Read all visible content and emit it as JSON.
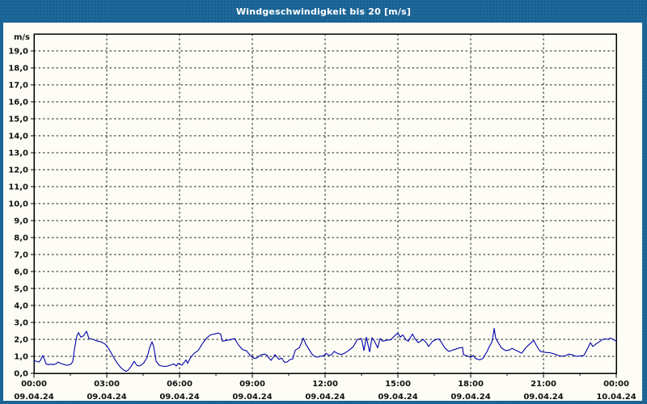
{
  "window": {
    "title": "Windgeschwindigkeit bis 20 [m/s]"
  },
  "colors": {
    "frame": "#1d689a",
    "titlebar": "#1d689a",
    "title_text": "#ffffff",
    "panel_bg": "#fdfdf6",
    "axis": "#000000",
    "grid": "#1a1a1a",
    "tick_label": "#111111",
    "line": "#0000aa"
  },
  "chart_data": {
    "type": "line",
    "title": "Windgeschwindigkeit bis 20 [m/s]",
    "y_unit": "m/s",
    "ylim": [
      0,
      20
    ],
    "y_tick_step": 1.0,
    "y_tick_labels": [
      "0,0",
      "1,0",
      "2,0",
      "3,0",
      "4,0",
      "5,0",
      "6,0",
      "7,0",
      "8,0",
      "9,0",
      "10,0",
      "11,0",
      "12,0",
      "13,0",
      "14,0",
      "15,0",
      "16,0",
      "17,0",
      "18,0",
      "19,0"
    ],
    "x_hours_span": 24,
    "x_major_step_hours": 3,
    "x_minor_step_hours": 1.5,
    "x_major_ticks": [
      {
        "time": "00:00",
        "date": "09.04.24"
      },
      {
        "time": "03:00",
        "date": "09.04.24"
      },
      {
        "time": "06:00",
        "date": "09.04.24"
      },
      {
        "time": "09:00",
        "date": "09.04.24"
      },
      {
        "time": "12:00",
        "date": "09.04.24"
      },
      {
        "time": "15:00",
        "date": "09.04.24"
      },
      {
        "time": "18:00",
        "date": "09.04.24"
      },
      {
        "time": "21:00",
        "date": "09.04.24"
      },
      {
        "time": "00:00",
        "date": "10.04.24"
      }
    ],
    "grid": "dashed",
    "legend": "none",
    "series": [
      {
        "name": "Windgeschwindigkeit",
        "unit": "m/s",
        "color": "#0000aa",
        "points_t_min_value": [
          [
            0,
            0.75
          ],
          [
            6,
            0.71
          ],
          [
            12,
            0.66
          ],
          [
            16,
            0.76
          ],
          [
            22,
            1.05
          ],
          [
            26,
            0.82
          ],
          [
            30,
            0.55
          ],
          [
            36,
            0.51
          ],
          [
            42,
            0.54
          ],
          [
            48,
            0.51
          ],
          [
            54,
            0.55
          ],
          [
            60,
            0.66
          ],
          [
            64,
            0.6
          ],
          [
            70,
            0.55
          ],
          [
            76,
            0.51
          ],
          [
            82,
            0.47
          ],
          [
            88,
            0.51
          ],
          [
            92,
            0.55
          ],
          [
            96,
            0.7
          ],
          [
            100,
            1.4
          ],
          [
            106,
            2.2
          ],
          [
            110,
            2.4
          ],
          [
            116,
            2.13
          ],
          [
            122,
            2.2
          ],
          [
            130,
            2.48
          ],
          [
            136,
            2.05
          ],
          [
            146,
            2.0
          ],
          [
            156,
            1.9
          ],
          [
            166,
            1.85
          ],
          [
            176,
            1.72
          ],
          [
            186,
            1.42
          ],
          [
            192,
            1.15
          ],
          [
            198,
            0.9
          ],
          [
            206,
            0.6
          ],
          [
            214,
            0.35
          ],
          [
            222,
            0.19
          ],
          [
            228,
            0.11
          ],
          [
            234,
            0.21
          ],
          [
            240,
            0.4
          ],
          [
            248,
            0.71
          ],
          [
            254,
            0.47
          ],
          [
            260,
            0.43
          ],
          [
            266,
            0.5
          ],
          [
            272,
            0.63
          ],
          [
            280,
            0.95
          ],
          [
            286,
            1.5
          ],
          [
            292,
            1.85
          ],
          [
            296,
            1.58
          ],
          [
            300,
            1.03
          ],
          [
            302,
            0.71
          ],
          [
            310,
            0.47
          ],
          [
            316,
            0.43
          ],
          [
            326,
            0.4
          ],
          [
            336,
            0.47
          ],
          [
            346,
            0.55
          ],
          [
            352,
            0.43
          ],
          [
            356,
            0.58
          ],
          [
            366,
            0.48
          ],
          [
            376,
            0.79
          ],
          [
            380,
            0.58
          ],
          [
            386,
            0.87
          ],
          [
            396,
            1.18
          ],
          [
            406,
            1.34
          ],
          [
            416,
            1.73
          ],
          [
            426,
            2.05
          ],
          [
            436,
            2.26
          ],
          [
            446,
            2.32
          ],
          [
            456,
            2.37
          ],
          [
            462,
            2.29
          ],
          [
            466,
            1.89
          ],
          [
            476,
            1.94
          ],
          [
            486,
            1.97
          ],
          [
            496,
            2.05
          ],
          [
            506,
            1.66
          ],
          [
            516,
            1.4
          ],
          [
            526,
            1.32
          ],
          [
            534,
            1.07
          ],
          [
            540,
            0.95
          ],
          [
            546,
            0.87
          ],
          [
            552,
            0.92
          ],
          [
            558,
            1.03
          ],
          [
            564,
            1.1
          ],
          [
            570,
            1.13
          ],
          [
            576,
            1.07
          ],
          [
            582,
            0.87
          ],
          [
            586,
            0.76
          ],
          [
            592,
            0.95
          ],
          [
            596,
            1.1
          ],
          [
            600,
            0.98
          ],
          [
            606,
            0.82
          ],
          [
            612,
            0.9
          ],
          [
            620,
            0.65
          ],
          [
            626,
            0.66
          ],
          [
            632,
            0.79
          ],
          [
            640,
            0.85
          ],
          [
            646,
            1.35
          ],
          [
            652,
            1.45
          ],
          [
            656,
            1.5
          ],
          [
            662,
            1.81
          ],
          [
            666,
            2.08
          ],
          [
            672,
            1.73
          ],
          [
            680,
            1.42
          ],
          [
            686,
            1.18
          ],
          [
            692,
            1.02
          ],
          [
            700,
            0.95
          ],
          [
            706,
            0.98
          ],
          [
            712,
            1.02
          ],
          [
            716,
            1.02
          ],
          [
            722,
            1.18
          ],
          [
            730,
            1.05
          ],
          [
            736,
            1.1
          ],
          [
            742,
            1.29
          ],
          [
            750,
            1.18
          ],
          [
            760,
            1.1
          ],
          [
            770,
            1.21
          ],
          [
            780,
            1.37
          ],
          [
            790,
            1.58
          ],
          [
            800,
            2.0
          ],
          [
            810,
            2.05
          ],
          [
            816,
            1.34
          ],
          [
            822,
            2.13
          ],
          [
            830,
            1.26
          ],
          [
            836,
            2.1
          ],
          [
            842,
            1.89
          ],
          [
            850,
            1.5
          ],
          [
            856,
            2.05
          ],
          [
            862,
            1.89
          ],
          [
            872,
            1.95
          ],
          [
            882,
            1.97
          ],
          [
            892,
            2.21
          ],
          [
            900,
            2.37
          ],
          [
            906,
            2.13
          ],
          [
            912,
            2.26
          ],
          [
            920,
            1.97
          ],
          [
            926,
            1.89
          ],
          [
            936,
            2.32
          ],
          [
            942,
            2.05
          ],
          [
            950,
            1.81
          ],
          [
            956,
            1.89
          ],
          [
            962,
            2.0
          ],
          [
            970,
            1.81
          ],
          [
            976,
            1.58
          ],
          [
            986,
            1.89
          ],
          [
            996,
            2.0
          ],
          [
            1002,
            2.02
          ],
          [
            1010,
            1.73
          ],
          [
            1016,
            1.5
          ],
          [
            1026,
            1.29
          ],
          [
            1032,
            1.34
          ],
          [
            1042,
            1.42
          ],
          [
            1052,
            1.5
          ],
          [
            1060,
            1.53
          ],
          [
            1062,
            1.1
          ],
          [
            1072,
            1.02
          ],
          [
            1080,
            0.94
          ],
          [
            1086,
            1.05
          ],
          [
            1092,
            0.87
          ],
          [
            1102,
            0.79
          ],
          [
            1110,
            0.87
          ],
          [
            1120,
            1.26
          ],
          [
            1126,
            1.58
          ],
          [
            1132,
            1.81
          ],
          [
            1136,
            2.3
          ],
          [
            1138,
            2.65
          ],
          [
            1142,
            2.05
          ],
          [
            1150,
            1.73
          ],
          [
            1156,
            1.5
          ],
          [
            1166,
            1.34
          ],
          [
            1176,
            1.37
          ],
          [
            1182,
            1.47
          ],
          [
            1190,
            1.37
          ],
          [
            1200,
            1.26
          ],
          [
            1206,
            1.18
          ],
          [
            1216,
            1.5
          ],
          [
            1226,
            1.73
          ],
          [
            1236,
            1.94
          ],
          [
            1242,
            1.66
          ],
          [
            1250,
            1.34
          ],
          [
            1256,
            1.26
          ],
          [
            1266,
            1.23
          ],
          [
            1276,
            1.21
          ],
          [
            1286,
            1.15
          ],
          [
            1296,
            1.05
          ],
          [
            1306,
            1.0
          ],
          [
            1316,
            1.05
          ],
          [
            1322,
            1.13
          ],
          [
            1330,
            1.1
          ],
          [
            1340,
            1.0
          ],
          [
            1350,
            1.02
          ],
          [
            1360,
            1.05
          ],
          [
            1370,
            1.5
          ],
          [
            1376,
            1.81
          ],
          [
            1382,
            1.58
          ],
          [
            1390,
            1.73
          ],
          [
            1400,
            1.89
          ],
          [
            1406,
            2.0
          ],
          [
            1412,
            2.03
          ],
          [
            1420,
            2.0
          ],
          [
            1426,
            2.08
          ],
          [
            1432,
            2.0
          ],
          [
            1440,
            1.89
          ]
        ]
      }
    ]
  }
}
